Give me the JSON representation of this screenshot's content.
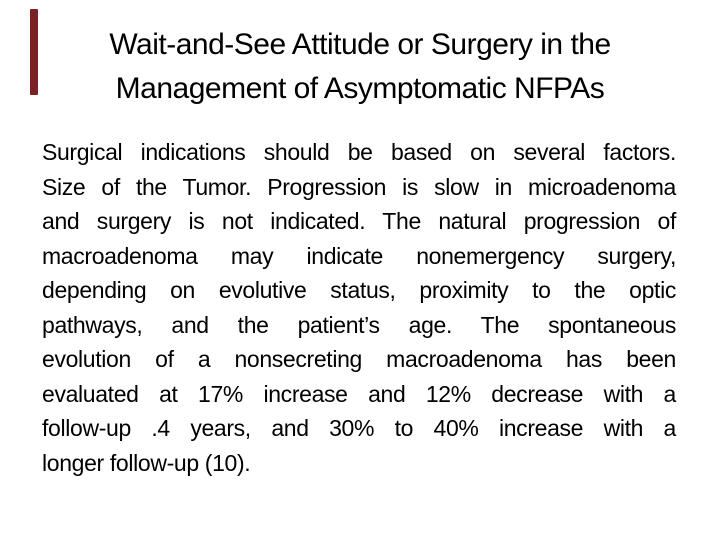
{
  "slide": {
    "background_color": "#ffffff",
    "text_color": "#000000",
    "accent_bar_color": "#7b2125",
    "title": {
      "lines": [
        "Wait-and-See Attitude or Surgery in the",
        "Management of Asymptomatic NFPAs"
      ]
    },
    "body": {
      "lines": [
        "Surgical indications should be based on several factors.",
        "Size of the Tumor. Progression is slow in microadenoma",
        "and surgery is not indicated. The natural progression of",
        "macroadenoma may indicate nonemergency surgery,",
        "depending on evolutive status, proximity to the optic",
        "pathways, and the patient’s age. The spontaneous",
        "evolution of a nonsecreting macroadenoma has been",
        "evaluated at 17% increase and 12% decrease with a",
        "follow-up .4 years, and 30% to 40% increase with a",
        "longer follow-up (10)."
      ]
    }
  }
}
